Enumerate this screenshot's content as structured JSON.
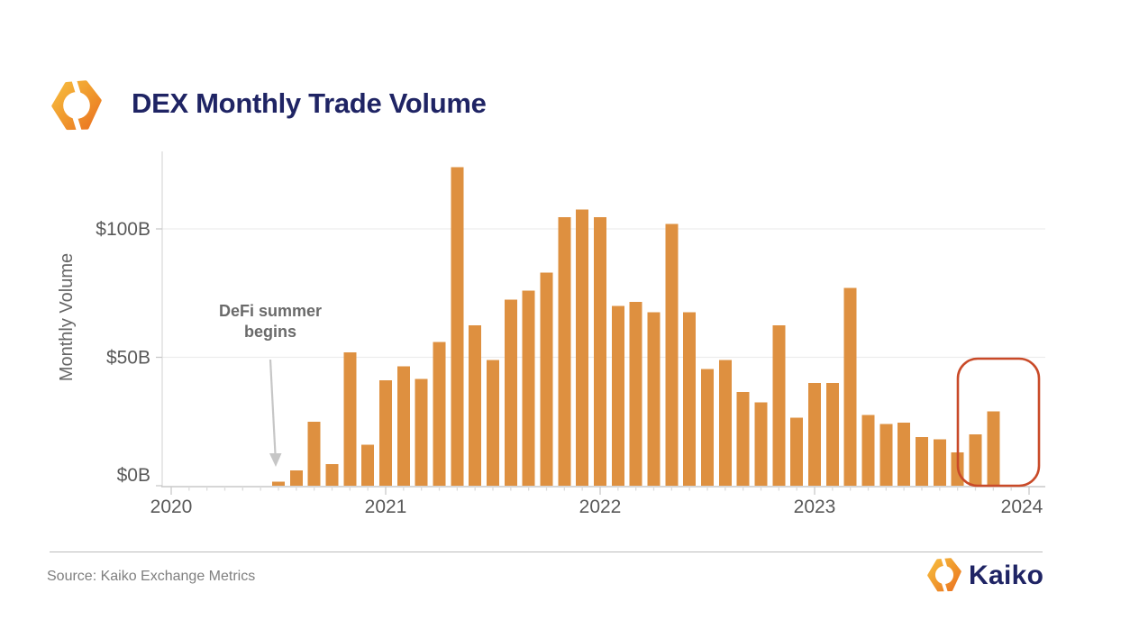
{
  "header": {
    "title": "DEX Monthly Trade Volume"
  },
  "chart_data": {
    "type": "bar",
    "title": "DEX Monthly Trade Volume",
    "xlabel": "",
    "ylabel": "Monthly Volume",
    "unit": "$B",
    "ylim": [
      0,
      130
    ],
    "grid": "horizontal",
    "legend": "none",
    "y_ticks": [
      {
        "value": 0,
        "label": "$0B"
      },
      {
        "value": 50,
        "label": "$50B"
      },
      {
        "value": 100,
        "label": "$100B"
      }
    ],
    "x_ticks": [
      {
        "month": "2020-01",
        "label": "2020"
      },
      {
        "month": "2021-01",
        "label": "2021"
      },
      {
        "month": "2022-01",
        "label": "2022"
      },
      {
        "month": "2023-01",
        "label": "2023"
      },
      {
        "month": "2024-01",
        "label": "2024"
      }
    ],
    "series": [
      {
        "name": "DEX monthly trade volume ($B)",
        "points": [
          {
            "month": "2020-07",
            "value": 1.5
          },
          {
            "month": "2020-08",
            "value": 6
          },
          {
            "month": "2020-09",
            "value": 25
          },
          {
            "month": "2020-10",
            "value": 8.5
          },
          {
            "month": "2020-11",
            "value": 52
          },
          {
            "month": "2020-12",
            "value": 16
          },
          {
            "month": "2021-01",
            "value": 41
          },
          {
            "month": "2021-02",
            "value": 46.5
          },
          {
            "month": "2021-03",
            "value": 41.5
          },
          {
            "month": "2021-04",
            "value": 56
          },
          {
            "month": "2021-05",
            "value": 124
          },
          {
            "month": "2021-06",
            "value": 62.5
          },
          {
            "month": "2021-07",
            "value": 49
          },
          {
            "month": "2021-08",
            "value": 72.5
          },
          {
            "month": "2021-09",
            "value": 76
          },
          {
            "month": "2021-10",
            "value": 83
          },
          {
            "month": "2021-11",
            "value": 104.5
          },
          {
            "month": "2021-12",
            "value": 107.5
          },
          {
            "month": "2022-01",
            "value": 104.5
          },
          {
            "month": "2022-02",
            "value": 70
          },
          {
            "month": "2022-03",
            "value": 71.5
          },
          {
            "month": "2022-04",
            "value": 67.5
          },
          {
            "month": "2022-05",
            "value": 102
          },
          {
            "month": "2022-06",
            "value": 67.5
          },
          {
            "month": "2022-07",
            "value": 45.5
          },
          {
            "month": "2022-08",
            "value": 49
          },
          {
            "month": "2022-09",
            "value": 36.5
          },
          {
            "month": "2022-10",
            "value": 32.5
          },
          {
            "month": "2022-11",
            "value": 62.5
          },
          {
            "month": "2022-12",
            "value": 26.5
          },
          {
            "month": "2023-01",
            "value": 40
          },
          {
            "month": "2023-02",
            "value": 40
          },
          {
            "month": "2023-03",
            "value": 77
          },
          {
            "month": "2023-04",
            "value": 27.5
          },
          {
            "month": "2023-05",
            "value": 24
          },
          {
            "month": "2023-06",
            "value": 24.5
          },
          {
            "month": "2023-07",
            "value": 19
          },
          {
            "month": "2023-08",
            "value": 18
          },
          {
            "month": "2023-09",
            "value": 13
          },
          {
            "month": "2023-10",
            "value": 20
          },
          {
            "month": "2023-11",
            "value": 29
          }
        ]
      }
    ],
    "annotation": {
      "line1": "DeFi summer",
      "line2": "begins",
      "points_to_month": "2020-07"
    },
    "highlight": {
      "months": [
        "2023-10",
        "2023-11"
      ],
      "shape": "rounded-rect"
    }
  },
  "footer": {
    "source": "Source: Kaiko Exchange Metrics",
    "brand": "Kaiko"
  },
  "colors": {
    "bar": "#de9040",
    "title_navy": "#1f2464",
    "highlight_red": "#c94a28",
    "gridline": "#ededed",
    "axis": "#c9c9c9",
    "axis_light": "#dcdcdc",
    "tick_text": "#595959",
    "ylabel_text": "#666666",
    "annotation_text": "#6a6a6a",
    "arrow": "#c6c6c6",
    "source_text": "#7f7f7f",
    "divider": "#bbbbbb",
    "logo_gold": "#f7bd3f",
    "logo_orange": "#f09a2e",
    "logo_deep_orange": "#ea7020"
  }
}
